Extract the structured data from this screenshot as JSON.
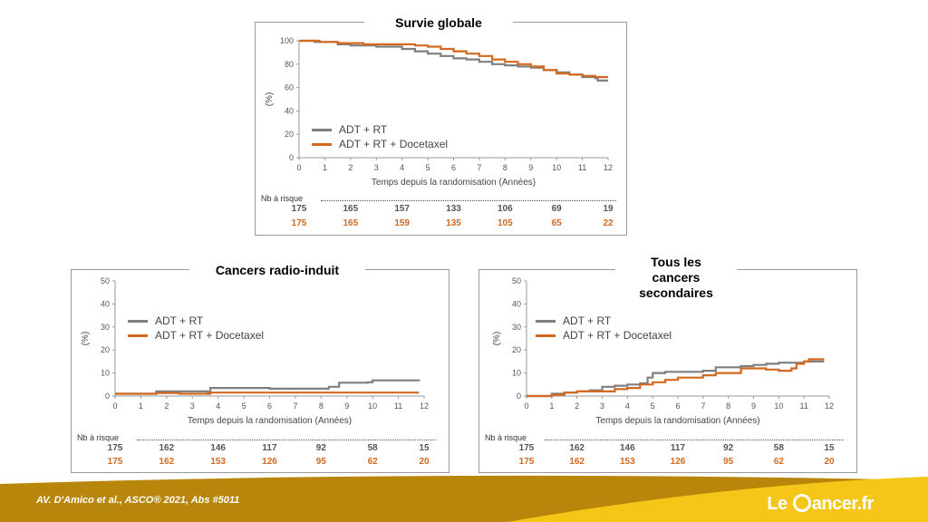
{
  "colors": {
    "adt_rt": "#7f7f7f",
    "adt_rt_docetaxel": "#d2691e",
    "footer_dark": "#b8860b",
    "footer_light": "#f5c518"
  },
  "chart_data": [
    {
      "id": "survie",
      "type": "line",
      "title": "Survie globale",
      "xlabel": "Temps depuis la randomisation (Années)",
      "ylabel": "(%)",
      "xlim": [
        0,
        12
      ],
      "ylim": [
        0,
        100
      ],
      "xticks": [
        "0",
        "1",
        "2",
        "3",
        "4",
        "5",
        "6",
        "7",
        "8",
        "9",
        "10",
        "11",
        "12"
      ],
      "yticks": [
        "0",
        "20",
        "40",
        "60",
        "80",
        "100"
      ],
      "legend_position": "middle-left",
      "series": [
        {
          "name": "ADT + RT",
          "color": "#7f7f7f",
          "points": [
            [
              0,
              100
            ],
            [
              0.6,
              99
            ],
            [
              1.5,
              97
            ],
            [
              2,
              96
            ],
            [
              3,
              95
            ],
            [
              4,
              93
            ],
            [
              4.5,
              91
            ],
            [
              5,
              89
            ],
            [
              5.5,
              87
            ],
            [
              6,
              85
            ],
            [
              6.5,
              84
            ],
            [
              7,
              82
            ],
            [
              7.5,
              80
            ],
            [
              8,
              79
            ],
            [
              8.5,
              78
            ],
            [
              9,
              77
            ],
            [
              9.5,
              75
            ],
            [
              10,
              73
            ],
            [
              10.5,
              71
            ],
            [
              11,
              69
            ],
            [
              11.5,
              68
            ],
            [
              11.6,
              66
            ],
            [
              12,
              66
            ]
          ]
        },
        {
          "name": "ADT + RT + Docetaxel",
          "color": "#d2691e",
          "points": [
            [
              0,
              100
            ],
            [
              0.8,
              99
            ],
            [
              1.5,
              98
            ],
            [
              2.5,
              97
            ],
            [
              3.5,
              97
            ],
            [
              4.5,
              96
            ],
            [
              5,
              95
            ],
            [
              5.5,
              93
            ],
            [
              6,
              91
            ],
            [
              6.5,
              89
            ],
            [
              7,
              87
            ],
            [
              7.5,
              84
            ],
            [
              8,
              82
            ],
            [
              8.5,
              80
            ],
            [
              9,
              78
            ],
            [
              9.5,
              75
            ],
            [
              10,
              72
            ],
            [
              10.5,
              71
            ],
            [
              11,
              70
            ],
            [
              11.5,
              69
            ],
            [
              12,
              69
            ]
          ]
        }
      ],
      "risk": {
        "label": "Nb à risque",
        "x": [
          0,
          2,
          4,
          6,
          8,
          10,
          12
        ],
        "rows": [
          [
            "175",
            "165",
            "157",
            "133",
            "106",
            "69",
            "19"
          ],
          [
            "175",
            "165",
            "159",
            "135",
            "105",
            "65",
            "22"
          ]
        ]
      }
    },
    {
      "id": "radio",
      "type": "line",
      "title": "Cancers radio-induit",
      "xlabel": "Temps depuis la randomisation (Années)",
      "ylabel": "(%)",
      "xlim": [
        0,
        12
      ],
      "ylim": [
        0,
        50
      ],
      "xticks": [
        "0",
        "1",
        "2",
        "3",
        "4",
        "5",
        "6",
        "7",
        "8",
        "9",
        "10",
        "11",
        "12"
      ],
      "yticks": [
        "0",
        "10",
        "20",
        "30",
        "40",
        "50"
      ],
      "legend_position": "top-left",
      "series": [
        {
          "name": "ADT + RT",
          "color": "#7f7f7f",
          "points": [
            [
              0,
              1
            ],
            [
              1,
              1
            ],
            [
              1.6,
              1
            ],
            [
              1.6,
              2
            ],
            [
              3.6,
              1.8
            ],
            [
              3.7,
              3.5
            ],
            [
              6,
              3.2
            ],
            [
              8.3,
              3
            ],
            [
              8.3,
              4
            ],
            [
              8.7,
              4
            ],
            [
              8.7,
              5.8
            ],
            [
              9.8,
              6
            ],
            [
              10,
              6.8
            ],
            [
              11.8,
              7.2
            ]
          ]
        },
        {
          "name": "ADT + RT + Docetaxel",
          "color": "#d2691e",
          "points": [
            [
              0,
              1
            ],
            [
              1.6,
              1
            ],
            [
              1.6,
              1.3
            ],
            [
              2.5,
              1
            ],
            [
              3.6,
              1
            ],
            [
              3.7,
              1.5
            ],
            [
              5,
              1.5
            ],
            [
              8,
              1.5
            ],
            [
              11.8,
              1.5
            ]
          ]
        }
      ],
      "risk": {
        "label": "Nb à risque",
        "x": [
          0,
          2,
          4,
          6,
          8,
          10,
          12
        ],
        "rows": [
          [
            "175",
            "162",
            "146",
            "117",
            "92",
            "58",
            "15"
          ],
          [
            "175",
            "162",
            "153",
            "126",
            "95",
            "62",
            "20"
          ]
        ]
      }
    },
    {
      "id": "tous",
      "type": "line",
      "title": "Tous les cancers secondaires",
      "xlabel": "Temps depuis la randomisation (Années)",
      "ylabel": "(%)",
      "xlim": [
        0,
        12
      ],
      "ylim": [
        0,
        50
      ],
      "xticks": [
        "0",
        "1",
        "2",
        "3",
        "4",
        "5",
        "6",
        "7",
        "8",
        "9",
        "10",
        "11",
        "12"
      ],
      "yticks": [
        "0",
        "10",
        "20",
        "30",
        "40",
        "50"
      ],
      "legend_position": "top-left",
      "series": [
        {
          "name": "ADT + RT",
          "color": "#7f7f7f",
          "points": [
            [
              0,
              0
            ],
            [
              0.8,
              0
            ],
            [
              1,
              1
            ],
            [
              1.5,
              1.5
            ],
            [
              2,
              2
            ],
            [
              2.5,
              2.5
            ],
            [
              3,
              4
            ],
            [
              3.5,
              4.5
            ],
            [
              4,
              5
            ],
            [
              4.5,
              5.5
            ],
            [
              4.8,
              8
            ],
            [
              5,
              10
            ],
            [
              5.5,
              10.5
            ],
            [
              6,
              10.5
            ],
            [
              6.5,
              10.5
            ],
            [
              7,
              11
            ],
            [
              7.5,
              12.5
            ],
            [
              8,
              12.5
            ],
            [
              8.5,
              13
            ],
            [
              9,
              13.5
            ],
            [
              9.5,
              14
            ],
            [
              10,
              14.5
            ],
            [
              11,
              15
            ],
            [
              11.8,
              15
            ]
          ]
        },
        {
          "name": "ADT + RT + Docetaxel",
          "color": "#d2691e",
          "points": [
            [
              0,
              0
            ],
            [
              0.9,
              0
            ],
            [
              1,
              0.5
            ],
            [
              1.5,
              1.5
            ],
            [
              2,
              2
            ],
            [
              2.5,
              2
            ],
            [
              3,
              2
            ],
            [
              3.5,
              3
            ],
            [
              4,
              3.5
            ],
            [
              4.5,
              5
            ],
            [
              5,
              6
            ],
            [
              5.5,
              7
            ],
            [
              6,
              8
            ],
            [
              6.5,
              8
            ],
            [
              7,
              9
            ],
            [
              7.5,
              10
            ],
            [
              8,
              10
            ],
            [
              8.5,
              12
            ],
            [
              9,
              12
            ],
            [
              9.5,
              11.5
            ],
            [
              10,
              11
            ],
            [
              10.5,
              12
            ],
            [
              10.7,
              14
            ],
            [
              11,
              15
            ],
            [
              11.2,
              16
            ],
            [
              11.8,
              16
            ]
          ]
        }
      ],
      "risk": {
        "label": "Nb à risque",
        "x": [
          0,
          2,
          4,
          6,
          8,
          10,
          12
        ],
        "rows": [
          [
            "175",
            "162",
            "146",
            "117",
            "92",
            "58",
            "15"
          ],
          [
            "175",
            "162",
            "153",
            "126",
            "95",
            "62",
            "20"
          ]
        ]
      }
    }
  ],
  "footer": {
    "citation": "AV. D'Amico et al.,  ASCO® 2021, Abs #5011",
    "brand_le": "Le",
    "brand_rest": "ancer.fr"
  }
}
